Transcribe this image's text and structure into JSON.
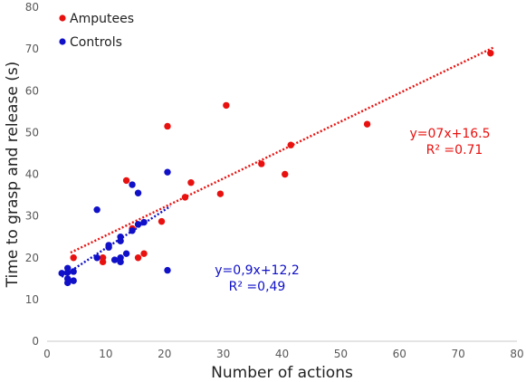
{
  "chart_data": {
    "type": "scatter",
    "xlabel": "Number of actions",
    "ylabel": "Time to grasp and release (s)",
    "xlim": [
      0,
      80
    ],
    "ylim": [
      0,
      80
    ],
    "x_ticks": [
      0,
      10,
      20,
      30,
      40,
      50,
      60,
      70,
      80
    ],
    "y_ticks": [
      0,
      10,
      20,
      30,
      40,
      50,
      60,
      70,
      80
    ],
    "grid": false,
    "legend_position": "top-left",
    "series": [
      {
        "name": "Amputees",
        "color": "#e8110f",
        "points": [
          [
            4.5,
            20
          ],
          [
            9.5,
            19
          ],
          [
            9.5,
            20
          ],
          [
            13.5,
            38.5
          ],
          [
            14.5,
            27
          ],
          [
            15.5,
            20
          ],
          [
            16.5,
            21
          ],
          [
            19.5,
            28.7
          ],
          [
            20.5,
            51.5
          ],
          [
            23.5,
            34.5
          ],
          [
            24.5,
            38
          ],
          [
            29.5,
            35.3
          ],
          [
            30.5,
            56.5
          ],
          [
            36.5,
            42.5
          ],
          [
            40.5,
            40
          ],
          [
            41.5,
            47
          ],
          [
            54.5,
            52
          ],
          [
            75.5,
            69
          ]
        ],
        "trendline": {
          "x_range": [
            4,
            76
          ],
          "equation_text": "y=07x+16.5",
          "r2_text": "R² =0.71"
        }
      },
      {
        "name": "Controls",
        "color": "#1010c8",
        "points": [
          [
            2.5,
            16.3
          ],
          [
            3.5,
            14
          ],
          [
            3.5,
            15
          ],
          [
            3.5,
            16.5
          ],
          [
            3.5,
            17.5
          ],
          [
            4.5,
            14.5
          ],
          [
            4.5,
            16.7
          ],
          [
            8.5,
            31.5
          ],
          [
            8.5,
            20
          ],
          [
            10.5,
            22.5
          ],
          [
            10.5,
            23
          ],
          [
            11.5,
            19.5
          ],
          [
            12.5,
            19
          ],
          [
            12.5,
            20
          ],
          [
            12.5,
            24
          ],
          [
            12.5,
            25
          ],
          [
            13.5,
            21
          ],
          [
            14.5,
            26.5
          ],
          [
            14.5,
            37.5
          ],
          [
            15.5,
            35.5
          ],
          [
            15.5,
            28
          ],
          [
            16.5,
            28.5
          ],
          [
            20.5,
            40.5
          ],
          [
            20.5,
            17
          ]
        ],
        "trendline": {
          "x_range": [
            2.5,
            21
          ],
          "equation_text": "y=0,9x+12,2",
          "r2_text": "R² =0,49"
        }
      }
    ]
  }
}
